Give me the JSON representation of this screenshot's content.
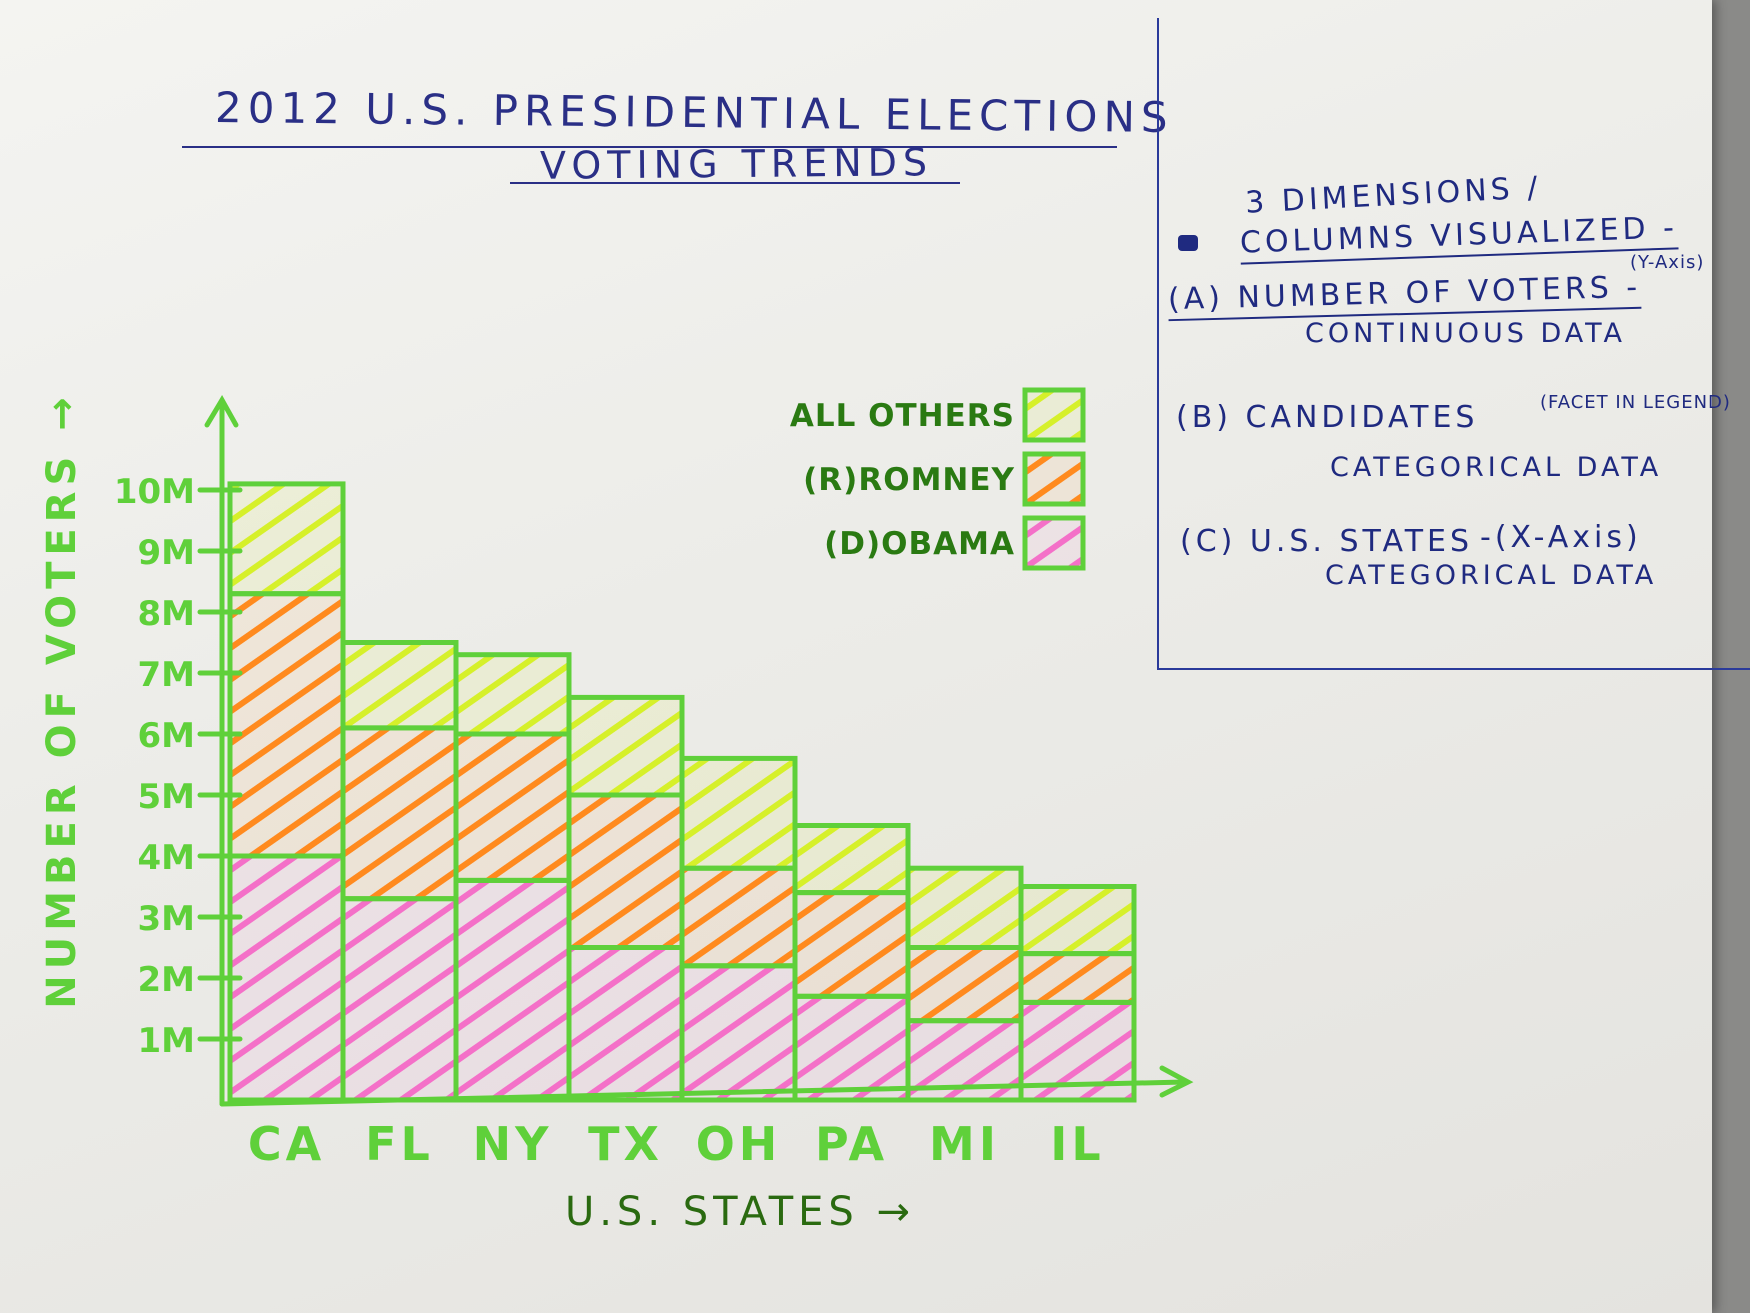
{
  "title": {
    "line1": "2012 U.S. PRESIDENTIAL ELECTIONS",
    "line2": "VOTING TRENDS"
  },
  "notes": {
    "heading1": "3 DIMENSIONS /",
    "heading2": "COLUMNS VISUALIZED -",
    "a_label": "(A) NUMBER OF VOTERS -",
    "a_axis": "(Y-Axis)",
    "a_type": "CONTINUOUS DATA",
    "b_label": "(B) CANDIDATES",
    "b_facet": "(FACET IN LEGEND)",
    "b_type": "CATEGORICAL DATA",
    "c_label": "(C) U.S. STATES",
    "c_axis": "-(X-Axis)",
    "c_type": "CATEGORICAL DATA"
  },
  "colors": {
    "axis": "#5fd03a",
    "obama": "#f470c8",
    "romney": "#ff8a1e",
    "others": "#d6f02a",
    "ink": "#1f2a80"
  },
  "chart_data": {
    "type": "bar",
    "stacked": true,
    "title": "2012 U.S. PRESIDENTIAL ELECTIONS VOTING TRENDS",
    "xlabel": "U.S. STATES →",
    "ylabel": "NUMBER OF VOTERS →",
    "categories": [
      "CA",
      "FL",
      "NY",
      "TX",
      "OH",
      "PA",
      "MI",
      "IL"
    ],
    "yticks": [
      "1M",
      "2M",
      "3M",
      "4M",
      "5M",
      "6M",
      "7M",
      "8M",
      "9M",
      "10M"
    ],
    "ylim": [
      0,
      10.5
    ],
    "legend_position": "top-right",
    "series": [
      {
        "name": "(D)OBAMA",
        "values": [
          4.0,
          3.3,
          3.6,
          2.5,
          2.2,
          1.7,
          1.3,
          1.6
        ]
      },
      {
        "name": "(R)ROMNEY",
        "values": [
          4.3,
          2.8,
          2.4,
          2.5,
          1.6,
          1.7,
          1.2,
          0.8
        ]
      },
      {
        "name": "ALL OTHERS",
        "values": [
          1.8,
          1.4,
          1.3,
          1.6,
          1.8,
          1.1,
          1.3,
          1.1
        ]
      }
    ],
    "legend_order": [
      "ALL OTHERS",
      "(R)ROMNEY",
      "(D)OBAMA"
    ]
  }
}
